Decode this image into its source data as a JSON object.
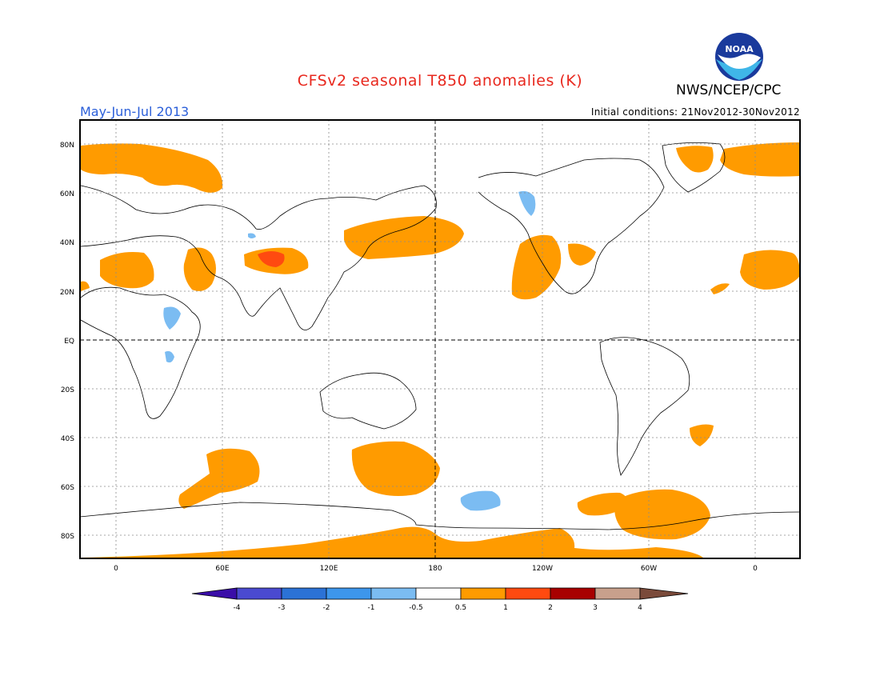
{
  "header": {
    "title": "CFSv2 seasonal T850 anomalies (K)",
    "agency": "NWS/NCEP/CPC",
    "period": "May-Jun-Jul 2013",
    "initial_conditions": "Initial conditions: 21Nov2012-30Nov2012",
    "logo_text": "NOAA"
  },
  "axes": {
    "lat_labels": [
      "80N",
      "60N",
      "40N",
      "20N",
      "EQ",
      "20S",
      "40S",
      "60S",
      "80S"
    ],
    "lon_labels": [
      "0",
      "60E",
      "120E",
      "180",
      "120W",
      "60W",
      "0"
    ]
  },
  "colorbar": {
    "labels": [
      "-4",
      "-3",
      "-2",
      "-1",
      "-0.5",
      "0.5",
      "1",
      "2",
      "3",
      "4"
    ],
    "colors": [
      "#3a0ea8",
      "#4a4ad0",
      "#2b72d6",
      "#3d96ec",
      "#7bbcf2",
      "#ffffff",
      "#ff9b00",
      "#ff4a10",
      "#a80000",
      "#c8a08c",
      "#7a4a3a"
    ]
  },
  "legend_colors": {
    "warm_1": "#ff9b00",
    "warm_2": "#ff4a10",
    "cool_1": "#7bbcf2"
  }
}
